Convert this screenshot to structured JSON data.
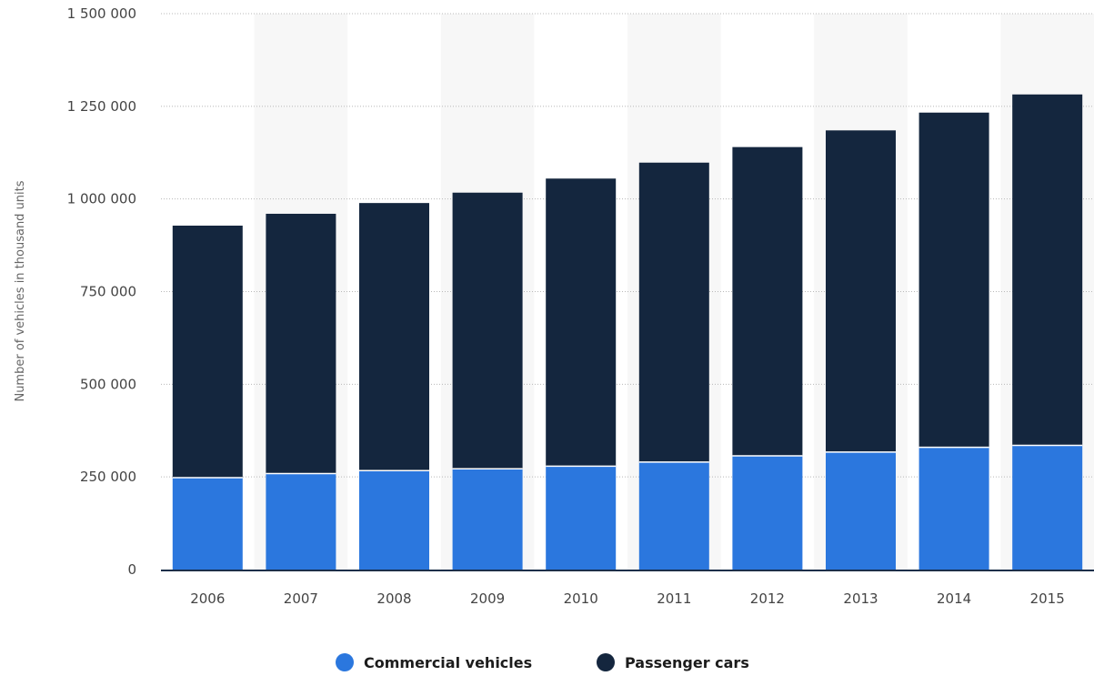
{
  "chart_data": {
    "type": "bar",
    "stacked": true,
    "title": "",
    "xlabel": "",
    "ylabel": "Number of vehicles in thousand units",
    "categories": [
      "2006",
      "2007",
      "2008",
      "2009",
      "2010",
      "2011",
      "2012",
      "2013",
      "2014",
      "2015"
    ],
    "ylim": [
      0,
      1500000
    ],
    "yticks": [
      0,
      250000,
      500000,
      750000,
      1000000,
      1250000,
      1500000
    ],
    "ytick_labels": [
      "0",
      "250 000",
      "500 000",
      "750 000",
      "1 000 000",
      "1 250 000",
      "1 500 000"
    ],
    "grid": true,
    "legend_position": "bottom-center",
    "series": [
      {
        "name": "Commercial vehicles",
        "color": "#2b77de",
        "values": [
          248000,
          259000,
          267000,
          272000,
          279000,
          290000,
          307000,
          317000,
          330000,
          335000
        ]
      },
      {
        "name": "Passenger cars",
        "color": "#14263e",
        "values": [
          680000,
          701000,
          722000,
          745000,
          776000,
          808000,
          833000,
          868000,
          903000,
          947000
        ]
      }
    ]
  }
}
